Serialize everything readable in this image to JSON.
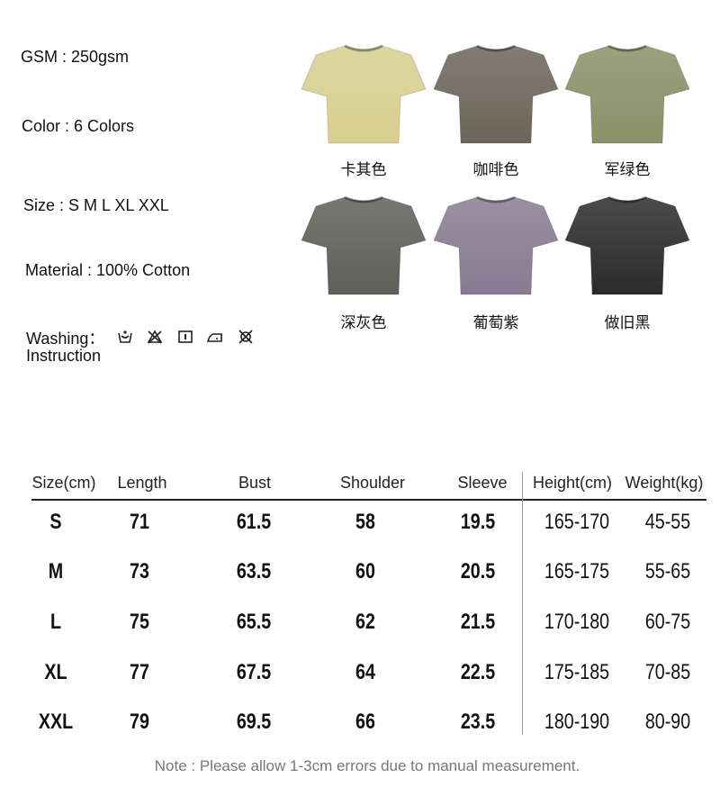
{
  "specs": {
    "gsm": "GSM : 250gsm",
    "color": "Color : 6 Colors",
    "size": "Size : S M L XL XXL",
    "material": "Material : 100% Cotton",
    "washing": "Washing：",
    "instruction": "Instruction",
    "washing_icons": [
      "hand-wash-icon",
      "do-not-bleach-icon",
      "tumble-dry-icon",
      "iron-icon",
      "do-not-dry-clean-icon"
    ]
  },
  "colors": [
    {
      "label": "卡其色",
      "hex": "#d8cf8f"
    },
    {
      "label": "咖啡色",
      "hex": "#6c655a"
    },
    {
      "label": "军绿色",
      "hex": "#8a9067"
    },
    {
      "label": "深灰色",
      "hex": "#5f605a"
    },
    {
      "label": "葡萄紫",
      "hex": "#877c93"
    },
    {
      "label": "做旧黑",
      "hex": "#2b2b2b"
    }
  ],
  "table": {
    "headers": [
      "Size(cm)",
      "Length",
      "Bust",
      "Shoulder",
      "Sleeve",
      "Height(cm)",
      "Weight(kg)"
    ],
    "rows": [
      [
        "S",
        "71",
        "61.5",
        "58",
        "19.5",
        "165-170",
        "45-55"
      ],
      [
        "M",
        "73",
        "63.5",
        "60",
        "20.5",
        "165-175",
        "55-65"
      ],
      [
        "L",
        "75",
        "65.5",
        "62",
        "21.5",
        "170-180",
        "60-75"
      ],
      [
        "XL",
        "77",
        "67.5",
        "64",
        "22.5",
        "175-185",
        "70-85"
      ],
      [
        "XXL",
        "79",
        "69.5",
        "66",
        "23.5",
        "180-190",
        "80-90"
      ]
    ]
  },
  "note": "Note : Please allow 1-3cm errors due to manual measurement."
}
